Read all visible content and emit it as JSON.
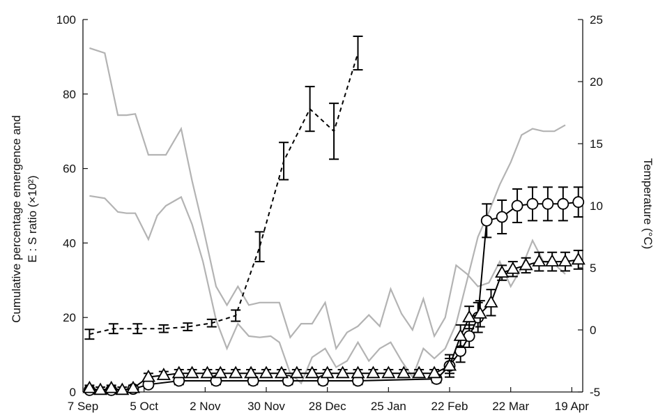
{
  "chart_data": {
    "type": "line",
    "xlabel": "",
    "x_ticks": [
      {
        "label": "7 Sep",
        "day": 0
      },
      {
        "label": "5 Oct",
        "day": 28
      },
      {
        "label": "2 Nov",
        "day": 56
      },
      {
        "label": "30 Nov",
        "day": 84
      },
      {
        "label": "28 Dec",
        "day": 112
      },
      {
        "label": "25 Jan",
        "day": 140
      },
      {
        "label": "22 Feb",
        "day": 168
      },
      {
        "label": "22 Mar",
        "day": 196
      },
      {
        "label": "19 Apr",
        "day": 224
      }
    ],
    "xlim": [
      0,
      229
    ],
    "ylabel_left": [
      "Cumulative percentage emergence and",
      "E : S ratio (×10²)"
    ],
    "ylim_left": [
      0,
      100
    ],
    "yticks_left": [
      0,
      20,
      40,
      60,
      80,
      100
    ],
    "ylabel_right": "Temperature (°C)",
    "ylim_right": [
      -5,
      25
    ],
    "yticks_right": [
      -5,
      0,
      5,
      10,
      15,
      20,
      25
    ],
    "grid": false,
    "series": [
      {
        "style": "dashed-black-errorbars",
        "axis": "left",
        "points": [
          {
            "x": 3,
            "y": 15.5,
            "err": 1.3
          },
          {
            "x": 14,
            "y": 17,
            "err": 1.3
          },
          {
            "x": 25,
            "y": 17,
            "err": 1.3
          },
          {
            "x": 37,
            "y": 17,
            "err": 1
          },
          {
            "x": 48,
            "y": 17.5,
            "err": 1
          },
          {
            "x": 59,
            "y": 18.5,
            "err": 1
          },
          {
            "x": 70,
            "y": 20.5,
            "err": 1.5
          },
          {
            "x": 81,
            "y": 39,
            "err": 4
          },
          {
            "x": 92,
            "y": 62,
            "err": 5
          },
          {
            "x": 104,
            "y": 76,
            "err": 6
          },
          {
            "x": 115,
            "y": 70,
            "err": 7.5
          },
          {
            "x": 126,
            "y": 91,
            "err": 4.5
          }
        ]
      },
      {
        "style": "black-circle-errorbars",
        "axis": "left",
        "points": [
          {
            "x": 3,
            "y": 0.5,
            "err": 0.5
          },
          {
            "x": 13,
            "y": 0.5,
            "err": 0.5
          },
          {
            "x": 23,
            "y": 0.8,
            "err": 0.5
          },
          {
            "x": 30,
            "y": 2,
            "err": 0.8
          },
          {
            "x": 44,
            "y": 3,
            "err": 1
          },
          {
            "x": 61,
            "y": 3,
            "err": 1
          },
          {
            "x": 78,
            "y": 3,
            "err": 1
          },
          {
            "x": 94,
            "y": 3,
            "err": 1
          },
          {
            "x": 110,
            "y": 3,
            "err": 1
          },
          {
            "x": 126,
            "y": 3,
            "err": 1
          },
          {
            "x": 162,
            "y": 3.5,
            "err": 1
          },
          {
            "x": 168,
            "y": 7,
            "err": 3
          },
          {
            "x": 173,
            "y": 11,
            "err": 3
          },
          {
            "x": 177,
            "y": 15,
            "err": 3
          },
          {
            "x": 181,
            "y": 20,
            "err": 4
          },
          {
            "x": 185,
            "y": 46,
            "err": 4.5
          },
          {
            "x": 192,
            "y": 47,
            "err": 4.5
          },
          {
            "x": 199,
            "y": 50,
            "err": 4.5
          },
          {
            "x": 206,
            "y": 50.5,
            "err": 4.5
          },
          {
            "x": 213,
            "y": 50.5,
            "err": 4.5
          },
          {
            "x": 220,
            "y": 50.5,
            "err": 4.5
          },
          {
            "x": 227,
            "y": 51,
            "err": 4
          }
        ]
      },
      {
        "style": "black-triangle-errorbars",
        "axis": "left",
        "points": [
          {
            "x": 3,
            "y": 1,
            "err": 0.8
          },
          {
            "x": 8,
            "y": 0.5,
            "err": 0.8
          },
          {
            "x": 13,
            "y": 1,
            "err": 0.8
          },
          {
            "x": 18,
            "y": 0.5,
            "err": 0.8
          },
          {
            "x": 23,
            "y": 1,
            "err": 0.8
          },
          {
            "x": 30,
            "y": 4,
            "err": 1
          },
          {
            "x": 37,
            "y": 4.5,
            "err": 1
          },
          {
            "x": 44,
            "y": 5,
            "err": 1
          },
          {
            "x": 50,
            "y": 5,
            "err": 1
          },
          {
            "x": 57,
            "y": 5,
            "err": 1
          },
          {
            "x": 63,
            "y": 5,
            "err": 1
          },
          {
            "x": 70,
            "y": 5,
            "err": 1
          },
          {
            "x": 77,
            "y": 5,
            "err": 1
          },
          {
            "x": 84,
            "y": 5,
            "err": 1
          },
          {
            "x": 91,
            "y": 5,
            "err": 1
          },
          {
            "x": 98,
            "y": 5,
            "err": 1
          },
          {
            "x": 105,
            "y": 5,
            "err": 1
          },
          {
            "x": 112,
            "y": 5,
            "err": 1
          },
          {
            "x": 119,
            "y": 5,
            "err": 1
          },
          {
            "x": 126,
            "y": 5,
            "err": 1
          },
          {
            "x": 133,
            "y": 5,
            "err": 1
          },
          {
            "x": 140,
            "y": 5,
            "err": 1
          },
          {
            "x": 147,
            "y": 5,
            "err": 1
          },
          {
            "x": 154,
            "y": 5,
            "err": 1
          },
          {
            "x": 161,
            "y": 5,
            "err": 1
          },
          {
            "x": 168,
            "y": 7,
            "err": 2
          },
          {
            "x": 173,
            "y": 15,
            "err": 3
          },
          {
            "x": 177,
            "y": 20,
            "err": 3
          },
          {
            "x": 182,
            "y": 21,
            "err": 3.5
          },
          {
            "x": 187,
            "y": 24,
            "err": 3.5
          },
          {
            "x": 192,
            "y": 32,
            "err": 2
          },
          {
            "x": 197,
            "y": 33,
            "err": 2
          },
          {
            "x": 203,
            "y": 34,
            "err": 2
          },
          {
            "x": 209,
            "y": 35,
            "err": 2.5
          },
          {
            "x": 215,
            "y": 35,
            "err": 2.5
          },
          {
            "x": 221,
            "y": 35,
            "err": 2.5
          },
          {
            "x": 227,
            "y": 35.5,
            "err": 2.5
          }
        ]
      },
      {
        "style": "gray-line",
        "axis": "right",
        "x": [
          3,
          10,
          16,
          20,
          24,
          30,
          34,
          38,
          45,
          50,
          55,
          61,
          66,
          71,
          76,
          81,
          86,
          90,
          95,
          100,
          105,
          111,
          116,
          121,
          126,
          131,
          136,
          141,
          146,
          151,
          156,
          161,
          166,
          171,
          176,
          181,
          186,
          191,
          196,
          201,
          206,
          211,
          216,
          221
        ],
        "y": [
          22.7,
          22.3,
          17.3,
          17.3,
          17.4,
          14.1,
          14.1,
          14.1,
          16.2,
          12,
          8.3,
          3.5,
          2,
          3.5,
          2,
          2.2,
          2.2,
          2.2,
          -0.6,
          0.5,
          0.5,
          2.2,
          -1.5,
          -0.2,
          0.3,
          1.2,
          0.3,
          3.3,
          1.3,
          0,
          2.5,
          -0.5,
          1,
          5.2,
          4.5,
          3.5,
          3.8,
          5.5,
          3.5,
          5,
          7.2,
          5.5,
          5.3,
          4.5
        ]
      },
      {
        "style": "gray-line",
        "axis": "right",
        "x": [
          3,
          10,
          16,
          20,
          24,
          30,
          34,
          38,
          45,
          50,
          55,
          61,
          66,
          71,
          76,
          81,
          86,
          90,
          95,
          100,
          105,
          111,
          116,
          121,
          126,
          131,
          136,
          141,
          146,
          151,
          156,
          161,
          166,
          171,
          176,
          181,
          186,
          191,
          196,
          201,
          206,
          211,
          216,
          221
        ],
        "y": [
          10.8,
          10.6,
          9.5,
          9.4,
          9.4,
          7.3,
          9.2,
          10,
          10.7,
          8.5,
          5.5,
          0.8,
          -1.5,
          0.5,
          -0.5,
          -0.6,
          -0.5,
          -1,
          -3.5,
          -4.3,
          -2.2,
          -1.5,
          -3,
          -2.5,
          -1,
          -2.5,
          -1.5,
          -1,
          -2.5,
          -3.8,
          -1.5,
          -2.3,
          -1.5,
          0.5,
          4,
          7.5,
          9.5,
          11.7,
          13.5,
          15.7,
          16.2,
          16,
          16,
          16.5
        ]
      }
    ]
  }
}
